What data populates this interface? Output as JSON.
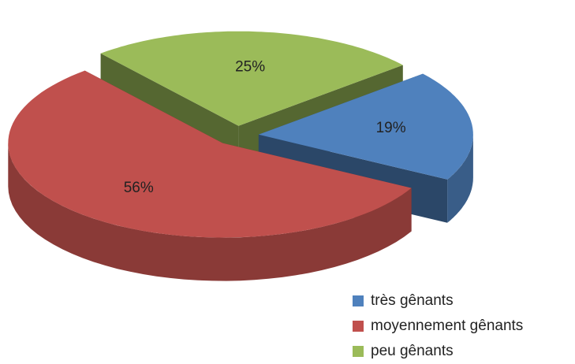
{
  "chart_data": {
    "type": "pie",
    "categories": [
      "très gênants",
      "moyennement gênants",
      "peu gênants"
    ],
    "values": [
      19,
      56,
      25
    ],
    "value_labels": [
      "19%",
      "56%",
      "25%"
    ],
    "colors": [
      "#4f81bd",
      "#c0504d",
      "#9bbb59"
    ],
    "legend": "bottom-right"
  }
}
